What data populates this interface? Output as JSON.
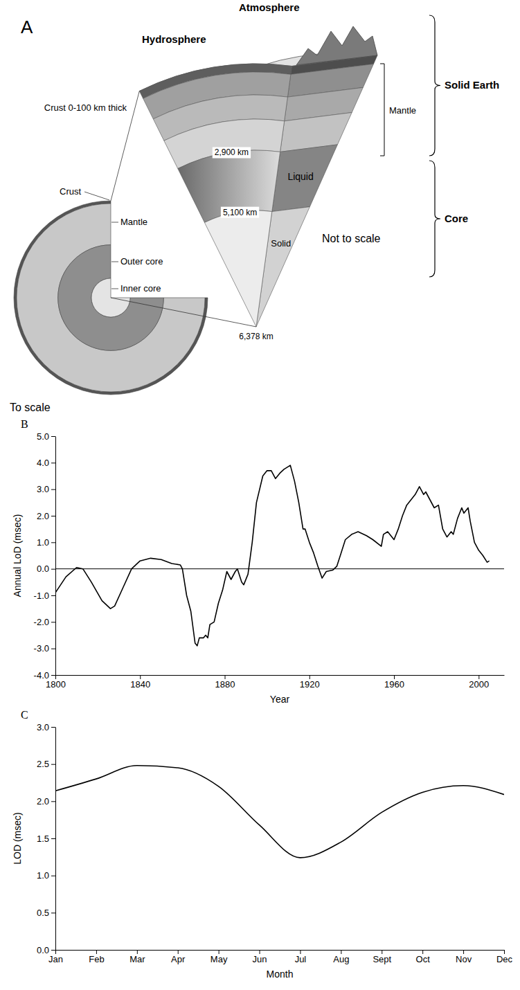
{
  "diagram": {
    "panel_label": "A",
    "atmosphere": "Atmosphere",
    "hydrosphere": "Hydrosphere",
    "crust_note": "Crust 0-100 km thick",
    "scale_view": {
      "label": "To scale",
      "crust": "Crust",
      "mantle": "Mantle",
      "outer_core": "Outer core",
      "inner_core": "Inner core"
    },
    "section_view": {
      "label": "Not to scale",
      "mantle": "Mantle",
      "depths": [
        "2,900 km",
        "5,100 km",
        "6,378 km"
      ],
      "liquid": "Liquid",
      "solid": "Solid"
    },
    "groups": [
      "Solid Earth",
      "Core"
    ]
  },
  "chart_data": [
    {
      "type": "line",
      "panel_label": "B",
      "xlabel": "Year",
      "ylabel": "Annual LoD (msec)",
      "x": [
        1800,
        1805,
        1810,
        1813,
        1817,
        1822,
        1826,
        1828,
        1832,
        1836,
        1840,
        1845,
        1850,
        1855,
        1859,
        1860,
        1862,
        1864,
        1866,
        1867,
        1868,
        1870,
        1871,
        1872,
        1873,
        1875,
        1877,
        1879,
        1881,
        1883,
        1885,
        1886,
        1888,
        1889,
        1891,
        1893,
        1895,
        1898,
        1900,
        1902,
        1904,
        1906,
        1908,
        1911,
        1913,
        1915,
        1917,
        1918,
        1920,
        1922,
        1924,
        1926,
        1928,
        1931,
        1933,
        1935,
        1937,
        1940,
        1943,
        1947,
        1950,
        1954,
        1955,
        1957,
        1960,
        1962,
        1964,
        1966,
        1968,
        1970,
        1972,
        1974,
        1975,
        1977,
        1979,
        1981,
        1983,
        1985,
        1987,
        1988,
        1990,
        1992,
        1993,
        1995,
        1996,
        1998,
        2000,
        2002,
        2004,
        2005
      ],
      "values": [
        -0.9,
        -0.3,
        0.05,
        0.0,
        -0.5,
        -1.2,
        -1.5,
        -1.4,
        -0.7,
        0.0,
        0.3,
        0.4,
        0.35,
        0.2,
        0.15,
        0.0,
        -1.0,
        -1.6,
        -2.8,
        -2.9,
        -2.6,
        -2.6,
        -2.5,
        -2.6,
        -2.1,
        -2.0,
        -1.3,
        -0.8,
        -0.1,
        -0.4,
        -0.1,
        0.0,
        -0.5,
        -0.6,
        -0.2,
        1.0,
        2.5,
        3.5,
        3.7,
        3.7,
        3.4,
        3.6,
        3.75,
        3.9,
        3.3,
        2.5,
        1.5,
        1.5,
        1.0,
        0.6,
        0.1,
        -0.35,
        -0.1,
        -0.05,
        0.1,
        0.6,
        1.1,
        1.3,
        1.4,
        1.25,
        1.1,
        0.85,
        1.3,
        1.4,
        1.1,
        1.5,
        2.0,
        2.4,
        2.6,
        2.8,
        3.1,
        2.8,
        2.9,
        2.6,
        2.3,
        2.4,
        1.5,
        1.2,
        1.4,
        1.3,
        1.9,
        2.3,
        2.1,
        2.3,
        1.8,
        1.0,
        0.7,
        0.5,
        0.25,
        0.3
      ],
      "color": "#000000",
      "xlim": [
        1800,
        2012
      ],
      "xticks": [
        1800,
        1840,
        1880,
        1920,
        1960,
        2000
      ],
      "ylim": [
        -4,
        5
      ],
      "yticks": [
        {
          "value": -4,
          "label": "-4.0"
        },
        {
          "value": -3,
          "label": "-3.0"
        },
        {
          "value": -2,
          "label": "-2.0"
        },
        {
          "value": -1,
          "label": "-1.0"
        },
        {
          "value": 0,
          "label": "0.0"
        },
        {
          "value": 1,
          "label": "1.0"
        },
        {
          "value": 2,
          "label": "2.0"
        },
        {
          "value": 3,
          "label": "3.0"
        },
        {
          "value": 4,
          "label": "4.0"
        },
        {
          "value": 5,
          "label": "5.0"
        }
      ],
      "reference_line": 0,
      "grid": false
    },
    {
      "type": "line",
      "panel_label": "C",
      "xlabel": "Month",
      "ylabel": "LOD (msec)",
      "categories": [
        "Jan",
        "Feb",
        "Mar",
        "Apr",
        "May",
        "Jun",
        "Jul",
        "Aug",
        "Sept",
        "Oct",
        "Nov",
        "Dec"
      ],
      "values": [
        2.14,
        2.3,
        2.48,
        2.45,
        2.2,
        1.68,
        1.24,
        1.45,
        1.85,
        2.12,
        2.21,
        2.09
      ],
      "color": "#000000",
      "ylim": [
        0,
        3
      ],
      "yticks": [
        {
          "value": 0,
          "label": "0.0"
        },
        0.5,
        {
          "value": 1,
          "label": "1.0"
        },
        1.5,
        {
          "value": 2,
          "label": "2.0"
        },
        2.5,
        {
          "value": 3,
          "label": "3.0"
        }
      ],
      "grid": false
    }
  ]
}
